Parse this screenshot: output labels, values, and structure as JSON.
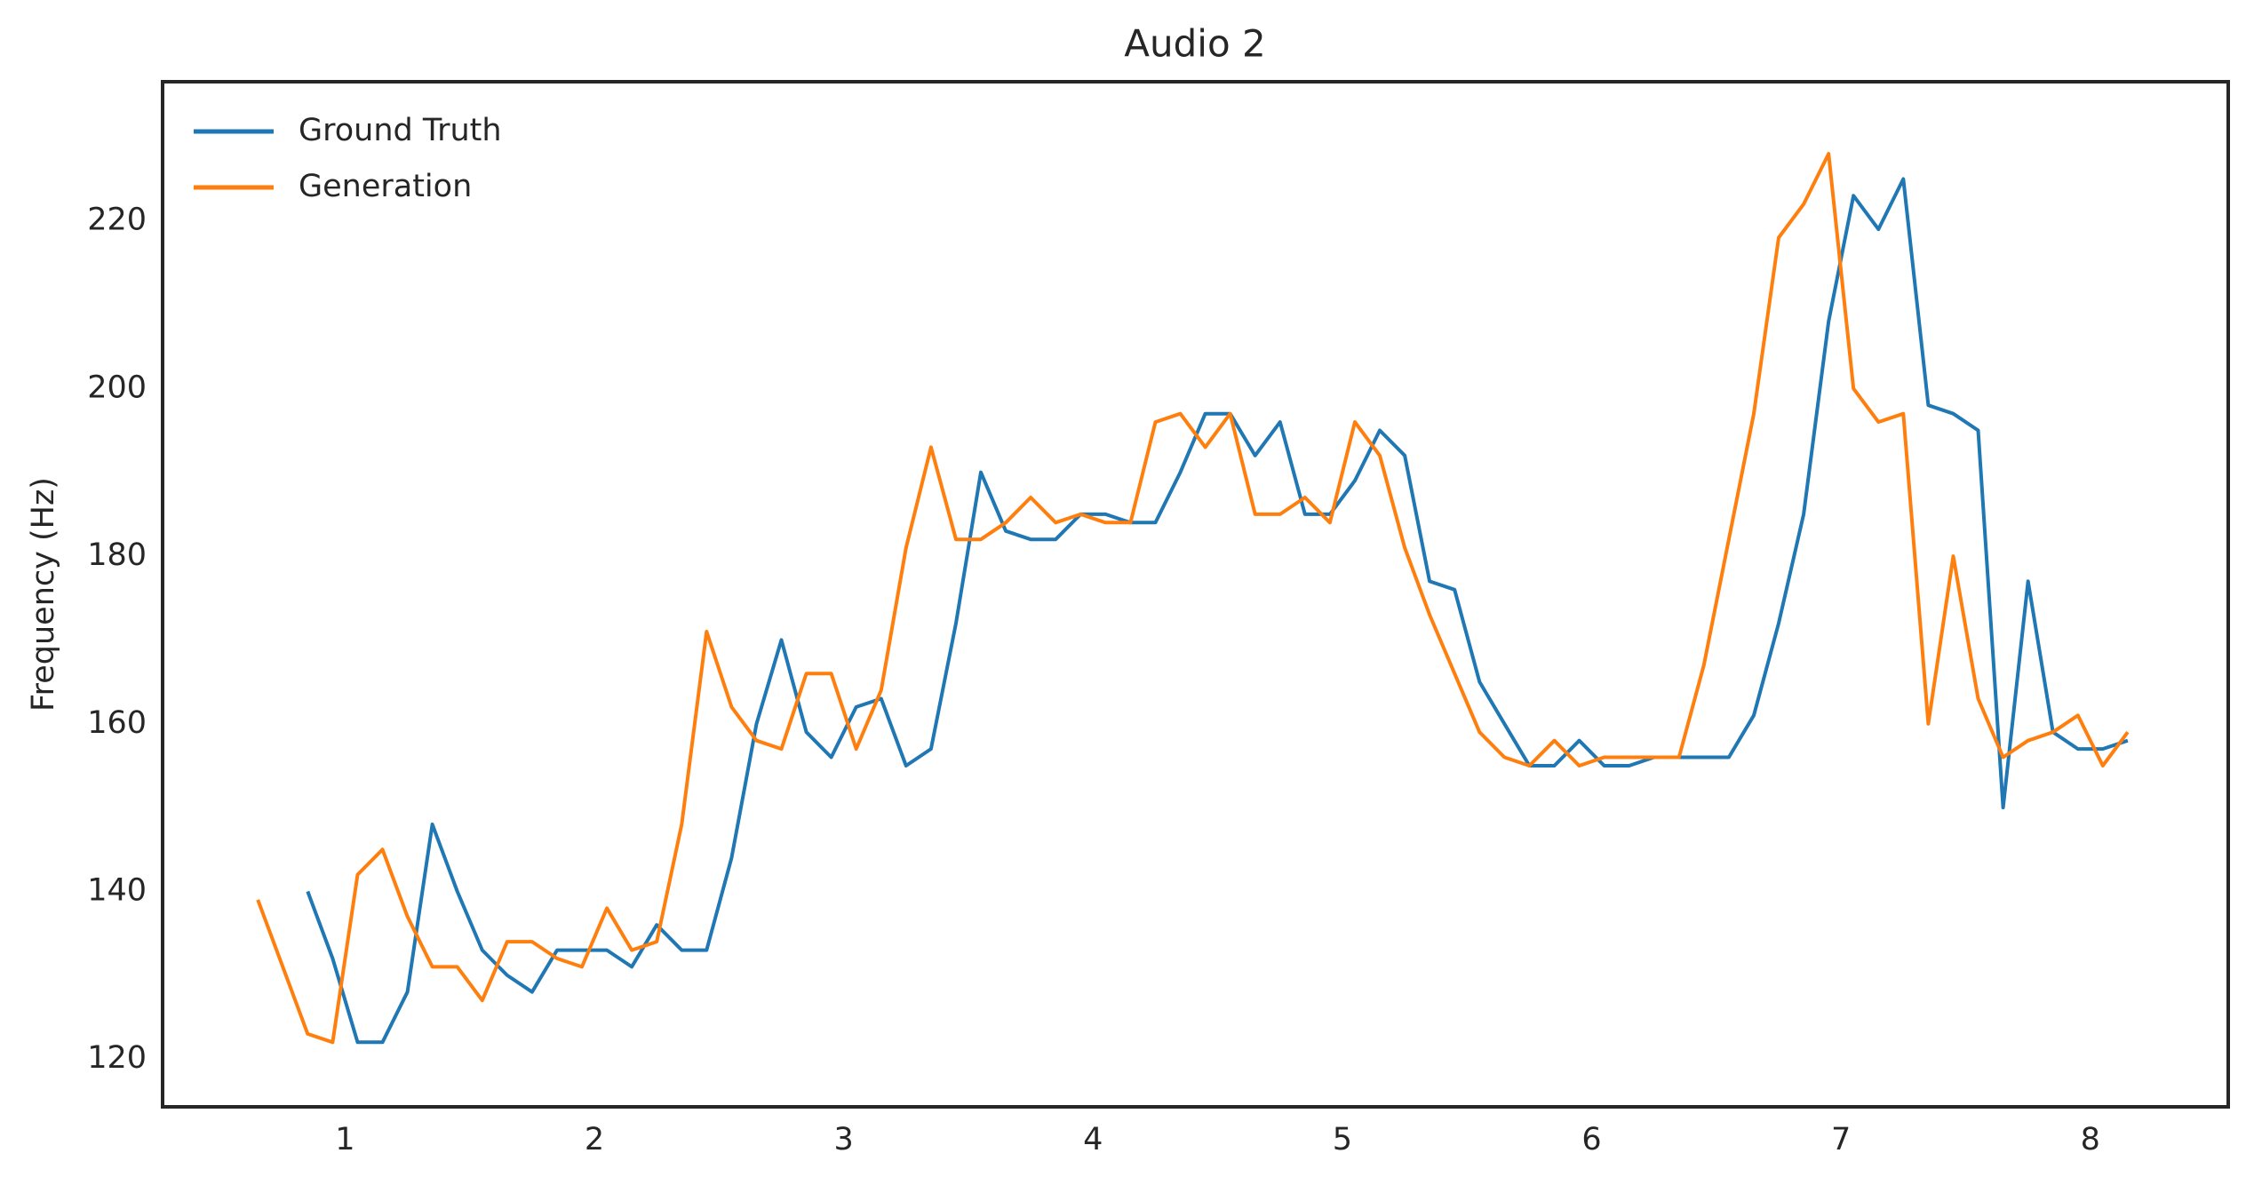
{
  "chart_data": {
    "type": "line",
    "title": "Audio 2",
    "y_label": "Frequency (Hz)",
    "x": [
      0.65,
      0.75,
      0.85,
      0.95,
      1.05,
      1.15,
      1.25,
      1.35,
      1.45,
      1.55,
      1.65,
      1.75,
      1.85,
      1.95,
      2.05,
      2.15,
      2.25,
      2.35,
      2.45,
      2.55,
      2.65,
      2.75,
      2.85,
      2.95,
      3.05,
      3.15,
      3.25,
      3.35,
      3.45,
      3.55,
      3.65,
      3.75,
      3.85,
      3.95,
      4.05,
      4.15,
      4.25,
      4.35,
      4.45,
      4.55,
      4.65,
      4.75,
      4.85,
      4.95,
      5.05,
      5.15,
      5.25,
      5.35,
      5.45,
      5.55,
      5.65,
      5.75,
      5.85,
      5.95,
      6.05,
      6.15,
      6.25,
      6.35,
      6.45,
      6.55,
      6.65,
      6.75,
      6.85,
      6.95,
      7.05,
      7.15,
      7.25,
      7.35,
      7.45,
      7.55,
      7.65,
      7.75,
      7.85,
      7.95,
      8.05,
      8.15
    ],
    "series": [
      {
        "name": "Ground Truth",
        "color": "#1f77b4",
        "values": [
          null,
          null,
          140,
          132,
          122,
          122,
          128,
          148,
          140,
          133,
          130,
          128,
          133,
          133,
          133,
          131,
          136,
          133,
          133,
          144,
          160,
          170,
          159,
          156,
          162,
          163,
          155,
          157,
          172,
          190,
          183,
          182,
          182,
          185,
          185,
          184,
          184,
          190,
          197,
          197,
          192,
          196,
          185,
          185,
          189,
          195,
          192,
          177,
          176,
          165,
          160,
          155,
          155,
          158,
          155,
          155,
          156,
          156,
          156,
          156,
          161,
          172,
          185,
          208,
          223,
          219,
          225,
          198,
          197,
          195,
          150,
          177,
          159,
          157,
          157,
          158
        ]
      },
      {
        "name": "Generation",
        "color": "#ff7f0e",
        "values": [
          139,
          131,
          123,
          122,
          142,
          145,
          137,
          131,
          131,
          127,
          134,
          134,
          132,
          131,
          138,
          133,
          134,
          148,
          171,
          162,
          158,
          157,
          166,
          166,
          157,
          164,
          181,
          193,
          182,
          182,
          184,
          187,
          184,
          185,
          184,
          184,
          196,
          197,
          193,
          197,
          185,
          185,
          187,
          184,
          196,
          192,
          181,
          173,
          166,
          159,
          156,
          155,
          158,
          155,
          156,
          156,
          156,
          156,
          167,
          182,
          197,
          218,
          222,
          228,
          200,
          196,
          197,
          160,
          180,
          163,
          156,
          158,
          159,
          161,
          155,
          159
        ]
      }
    ],
    "xlim": [
      0.268,
      8.553
    ],
    "ylim": [
      114.3,
      236.6
    ],
    "xticks": [
      1,
      2,
      3,
      4,
      5,
      6,
      7,
      8
    ],
    "yticks": [
      120,
      140,
      160,
      180,
      200,
      220
    ],
    "grid": false,
    "legend": "upper left"
  }
}
